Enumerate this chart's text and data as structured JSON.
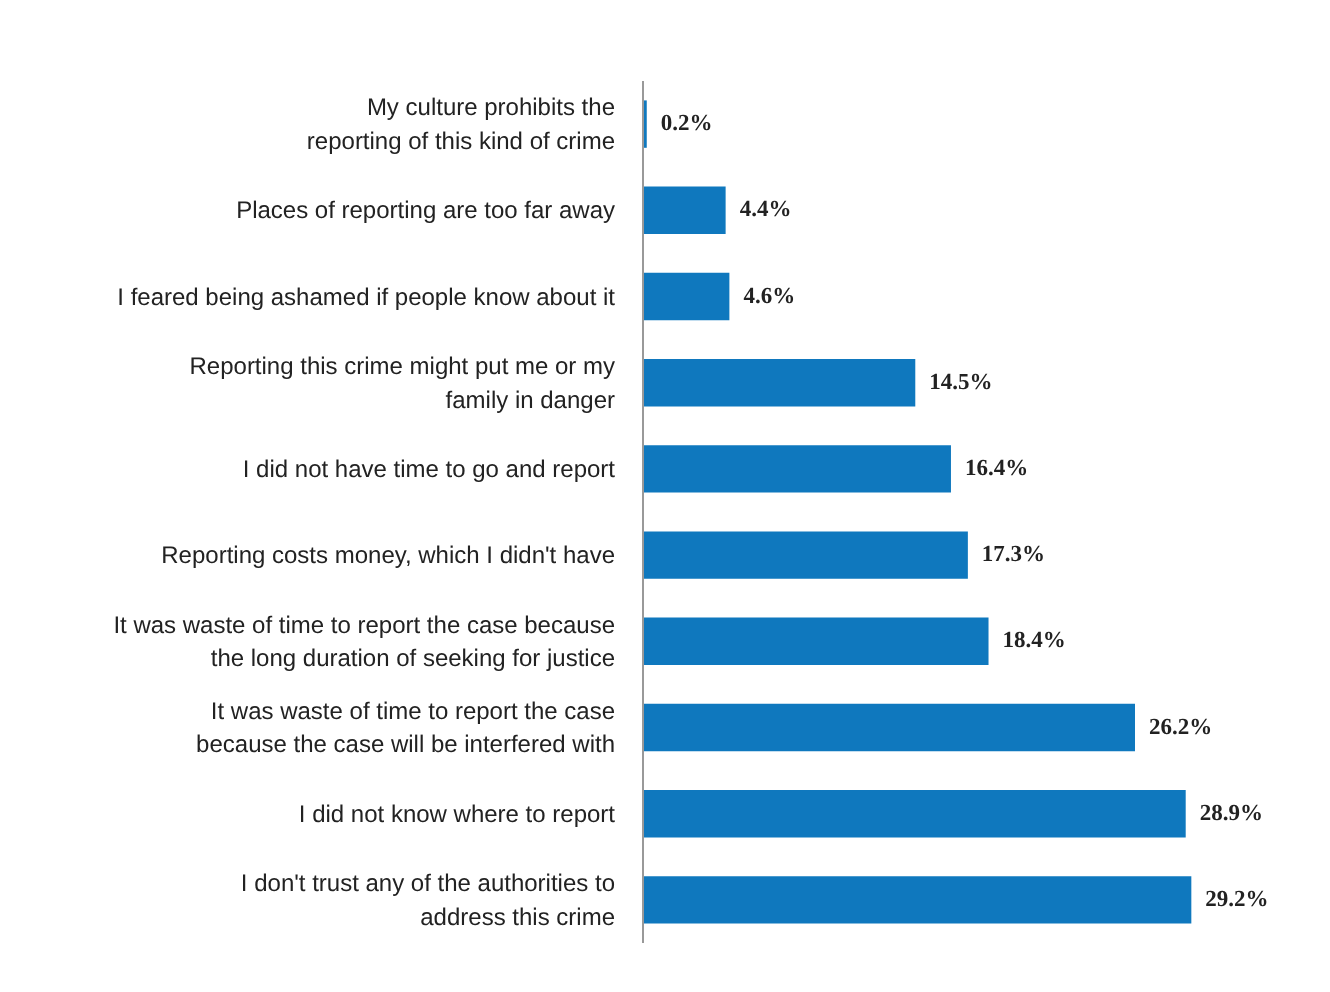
{
  "chart_data": {
    "type": "bar",
    "orientation": "horizontal",
    "color": "#0f78be",
    "categories": [
      "My culture prohibits the\nreporting of this kind of crime",
      "Places of reporting are too far away",
      "I feared being ashamed if people know about it",
      "Reporting this crime might put me or my\nfamily in danger",
      "I did not have time to go and report",
      "Reporting costs money, which I didn't have",
      "It was waste of time to report the case because\nthe long duration of seeking for justice",
      "It was waste of time to report the case\nbecause the case will be interfered with",
      "I did not know where to report",
      "I don't trust any of the authorities to\naddress this crime"
    ],
    "values": [
      0.2,
      4.4,
      4.6,
      14.5,
      16.4,
      17.3,
      18.4,
      26.2,
      28.9,
      29.2
    ],
    "value_labels": [
      "0.2%",
      "4.4%",
      "4.6%",
      "14.5%",
      "16.4%",
      "17.3%",
      "18.4%",
      "26.2%",
      "28.9%",
      "29.2%"
    ]
  }
}
